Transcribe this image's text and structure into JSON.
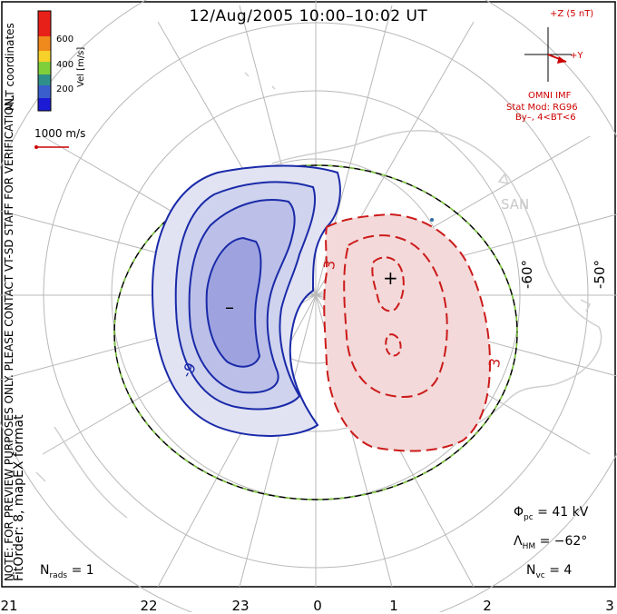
{
  "title": "12/Aug/2005 10:00–10:02 UT",
  "colorbar": {
    "label": "Vel [m/s]",
    "ticks": [
      "600",
      "400",
      "200"
    ],
    "colors": [
      "#e8201a",
      "#f08a1c",
      "#f6d12a",
      "#7fcf3a",
      "#2f8f8a",
      "#3a5fcc",
      "#1b1bd6"
    ]
  },
  "coord_label": "MLT coordinates",
  "vector_scale_label": "1000 m/s",
  "imf": {
    "z_label": "+Z (5 nT)",
    "y_label": "+Y",
    "source": "OMNI IMF",
    "stat_mod": "Stat Mod: RG96",
    "condition": "By–, 4<BT<6"
  },
  "notice": "NOTE: FOR PREVIEW PURPOSES ONLY. PLEASE CONTACT VT-SD STAFF FOR VERIFICATION.",
  "fit_info": "FitOrder: 8, mapEX format",
  "lat_labels": [
    "-60°",
    "-50°"
  ],
  "station": "SAN",
  "contours": {
    "negative_label": "-9",
    "positive_label_left": "3",
    "positive_label_right": "3",
    "min_marker": "–",
    "max_marker": "+"
  },
  "stats": {
    "phi_pc": {
      "symbol": "Φ",
      "sub": "pc",
      "value": "= 41 kV"
    },
    "lambda_hm": {
      "symbol": "Λ",
      "sub": "HM",
      "value": "= −62°"
    },
    "n_vc": {
      "symbol": "N",
      "sub": "vc",
      "value": "= 4"
    },
    "n_rads": {
      "symbol": "N",
      "sub": "rads",
      "value": "= 1"
    }
  },
  "mlt_labels": [
    "21",
    "22",
    "23",
    "0",
    "1",
    "2",
    "3"
  ],
  "colors": {
    "negative": "#1a2aa8",
    "positive": "#cc1a1a",
    "land": "#d4d4d4",
    "grid": "#b8b8b8"
  }
}
